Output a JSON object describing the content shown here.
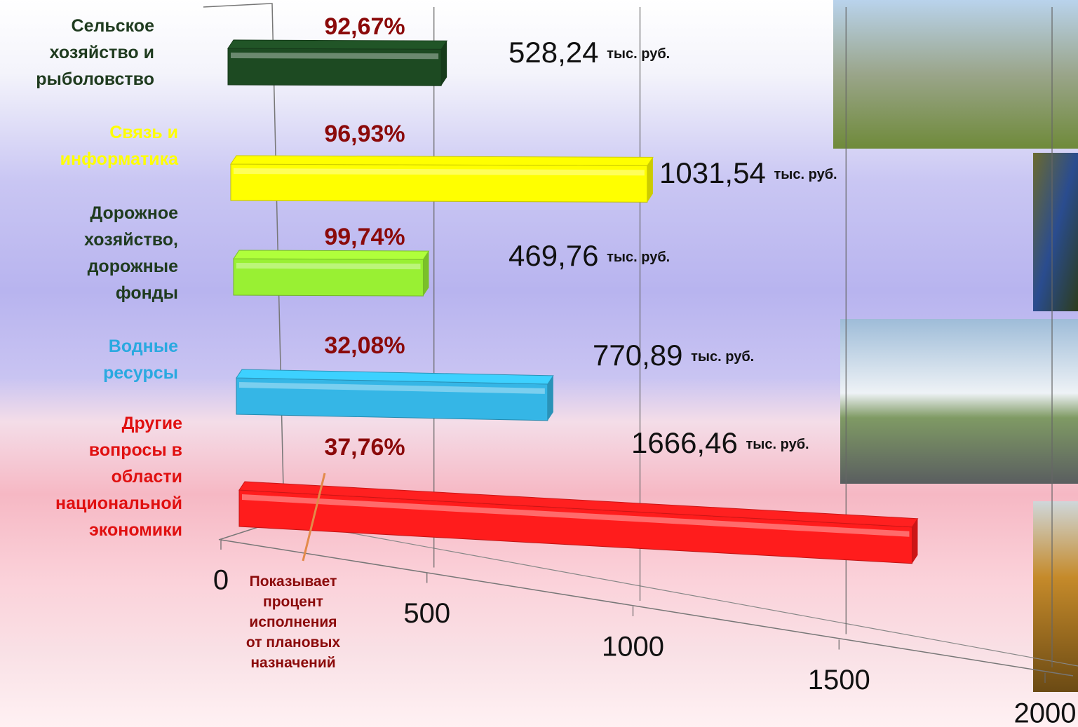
{
  "chart_data": {
    "type": "bar3d",
    "categories": [
      "Сельское\nхозяйство и\nрыболовство",
      "Связь и\nинформатика",
      "Дорожное\nхозяйство,\nдорожные\nфонды",
      "Водные\nресурсы",
      "Другие\nвопросы в\nобласти\nнациональной\nэкономики"
    ],
    "category_colors": [
      "#1f3b1f",
      "#ffff00",
      "#1f3b1f",
      "#2aa9e0",
      "#e01010"
    ],
    "values": [
      528.24,
      1031.54,
      469.76,
      770.89,
      1666.46
    ],
    "value_labels": [
      "528,24 тыс. руб.",
      "1031,54 тыс. руб.",
      "469,76 тыс. руб.",
      "770,89 тыс. руб.",
      "1666,46 тыс. руб."
    ],
    "colors": [
      "#1d4a22",
      "#ffff00",
      "#99f033",
      "#35b6e6",
      "#ff1c1c"
    ],
    "percent_labels": [
      "92,67%",
      "96,93%",
      "99,74%",
      "32,08%",
      "37,76%"
    ],
    "annotation": "Показывает\nпроцент\nисполнения\nот плановых\nназначений",
    "xlim": [
      0,
      2000
    ],
    "xticks": [
      0,
      500,
      1000,
      1500,
      2000
    ],
    "grid": true
  }
}
